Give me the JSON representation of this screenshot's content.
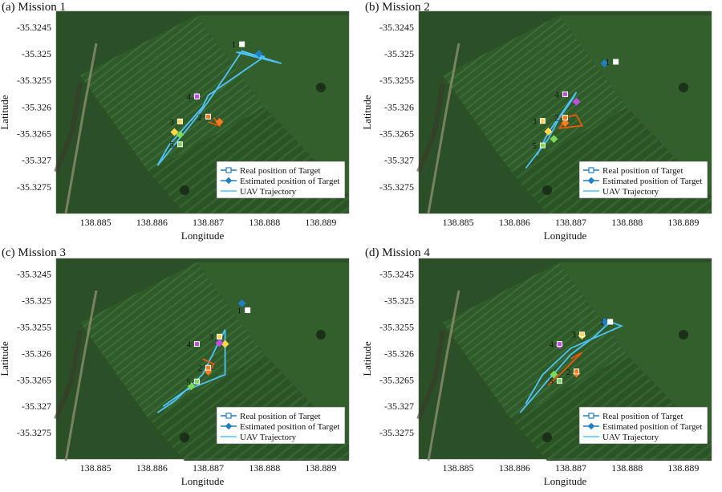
{
  "panels": [
    {
      "label": "(a) Mission 1"
    },
    {
      "label": "(b) Mission 2"
    },
    {
      "label": "(c) Mission 3"
    },
    {
      "label": "(d) Mission 4"
    }
  ],
  "colors": {
    "real": "#1f7fc4",
    "estimated": "#1f7fc4",
    "trajectory": "#4fc3f7",
    "target_colors": [
      "#ffffff",
      "#ff7a1a",
      "#ffd84d",
      "#c04fe0",
      "#7ed957"
    ],
    "path_orange": "#e8590c"
  },
  "chart_data": [
    {
      "type": "scatter",
      "title": "(a) Mission 1",
      "xlabel": "Longitude",
      "ylabel": "Latitude",
      "xlim": [
        138.8843,
        138.8895
      ],
      "ylim": [
        -35.328,
        -35.3242
      ],
      "xticks": [
        "138.885",
        "138.886",
        "138.887",
        "138.888",
        "138.889"
      ],
      "yticks": [
        "-35.3245",
        "-35.325",
        "-35.3255",
        "-35.326",
        "-35.3265",
        "-35.327",
        "-35.3275"
      ],
      "legend": [
        "Real position of Target",
        "Estimated position of Target",
        "UAV Trajectory"
      ],
      "legend_position": "bottom-right",
      "targets": [
        {
          "label": "1",
          "real": [
            138.8876,
            -35.32482
          ],
          "est": [
            138.8879,
            -35.325
          ]
        },
        {
          "label": "2",
          "real": [
            138.887,
            -35.32618
          ],
          "est": [
            138.8872,
            -35.32628
          ]
        },
        {
          "label": "3",
          "real": [
            138.8865,
            -35.32627
          ],
          "est": [
            138.8864,
            -35.32647
          ]
        },
        {
          "label": "4",
          "real": [
            138.8868,
            -35.3258
          ],
          "est": [
            138.8868,
            -35.3258
          ]
        },
        {
          "label": "5",
          "real": [
            138.8865,
            -35.3267
          ],
          "est": [
            138.8865,
            -35.32652
          ]
        }
      ],
      "trajectory": [
        [
          138.888,
          -35.32505
        ],
        [
          138.887,
          -35.32578
        ],
        [
          138.8869,
          -35.326
        ],
        [
          138.8863,
          -35.32672
        ],
        [
          138.8861,
          -35.3271
        ],
        [
          138.8867,
          -35.32632
        ],
        [
          138.887,
          -35.3259
        ],
        [
          138.8876,
          -35.32495
        ],
        [
          138.8883,
          -35.32518
        ],
        [
          138.8875,
          -35.32497
        ],
        [
          138.888,
          -35.32505
        ]
      ],
      "orange_path": [
        [
          138.8871,
          -35.3262
        ],
        [
          138.8872,
          -35.32635
        ],
        [
          138.887,
          -35.32628
        ]
      ]
    },
    {
      "type": "scatter",
      "title": "(b) Mission 2",
      "xlabel": "Longitude",
      "ylabel": "Latitude",
      "xlim": [
        138.8843,
        138.8895
      ],
      "ylim": [
        -35.328,
        -35.3242
      ],
      "xticks": [
        "138.885",
        "138.886",
        "138.887",
        "138.888",
        "138.889"
      ],
      "yticks": [
        "-35.3245",
        "-35.325",
        "-35.3255",
        "-35.326",
        "-35.3265",
        "-35.327",
        "-35.3275"
      ],
      "legend": [
        "Real position of Target",
        "Estimated position of Target",
        "UAV Trajectory"
      ],
      "legend_position": "bottom-right",
      "targets": [
        {
          "label": "1",
          "real": [
            138.8878,
            -35.32515
          ],
          "est": [
            138.8876,
            -35.32518
          ]
        },
        {
          "label": "2",
          "real": [
            138.8869,
            -35.3262
          ],
          "est": [
            138.8869,
            -35.3263
          ]
        },
        {
          "label": "3",
          "real": [
            138.8865,
            -35.32626
          ],
          "est": [
            138.8866,
            -35.32646
          ]
        },
        {
          "label": "4",
          "real": [
            138.8869,
            -35.32576
          ],
          "est": [
            138.8871,
            -35.3259
          ]
        },
        {
          "label": "5",
          "real": [
            138.8865,
            -35.32672
          ],
          "est": [
            138.8867,
            -35.3266
          ]
        }
      ],
      "trajectory": [
        [
          138.8862,
          -35.32715
        ],
        [
          138.8866,
          -35.3266
        ],
        [
          138.8868,
          -35.3262
        ],
        [
          138.887,
          -35.3259
        ],
        [
          138.8871,
          -35.32572
        ],
        [
          138.8866,
          -35.32648
        ],
        [
          138.8864,
          -35.3269
        ]
      ],
      "orange_path": [
        [
          138.8868,
          -35.3262
        ],
        [
          138.8871,
          -35.32615
        ],
        [
          138.8872,
          -35.32635
        ],
        [
          138.8868,
          -35.3264
        ],
        [
          138.8869,
          -35.32625
        ]
      ]
    },
    {
      "type": "scatter",
      "title": "(c) Mission 3",
      "xlabel": "Longitude",
      "ylabel": "Latitude",
      "xlim": [
        138.8843,
        138.8895
      ],
      "ylim": [
        -35.328,
        -35.3242
      ],
      "xticks": [
        "138.885",
        "138.886",
        "138.887",
        "138.888",
        "138.889"
      ],
      "yticks": [
        "-35.3245",
        "-35.325",
        "-35.3255",
        "-35.326",
        "-35.3265",
        "-35.327",
        "-35.3275"
      ],
      "legend": [
        "Real position of Target",
        "Estimated position of Target",
        "UAV Trajectory"
      ],
      "legend_position": "bottom-right",
      "targets": [
        {
          "label": "1",
          "real": [
            138.8877,
            -35.32518
          ],
          "est": [
            138.8876,
            -35.32505
          ]
        },
        {
          "label": "2",
          "real": [
            138.887,
            -35.32627
          ],
          "est": [
            138.887,
            -35.32634
          ]
        },
        {
          "label": "3",
          "real": [
            138.8872,
            -35.32568
          ],
          "est": [
            138.8873,
            -35.32582
          ]
        },
        {
          "label": "4",
          "real": [
            138.8868,
            -35.32582
          ],
          "est": [
            138.8872,
            -35.3258
          ]
        },
        {
          "label": "5",
          "real": [
            138.8868,
            -35.32653
          ],
          "est": [
            138.8867,
            -35.32662
          ]
        }
      ],
      "trajectory": [
        [
          138.8861,
          -35.32712
        ],
        [
          138.8864,
          -35.3269
        ],
        [
          138.8869,
          -35.3264
        ],
        [
          138.8873,
          -35.32555
        ],
        [
          138.8873,
          -35.3264
        ],
        [
          138.8866,
          -35.3267
        ],
        [
          138.8862,
          -35.327
        ]
      ],
      "orange_path": [
        [
          138.8869,
          -35.3261
        ],
        [
          138.8871,
          -35.3262
        ],
        [
          138.887,
          -35.3264
        ]
      ]
    },
    {
      "type": "scatter",
      "title": "(d) Mission 4",
      "xlabel": "Longitude",
      "ylabel": "Latitude",
      "xlim": [
        138.8843,
        138.8895
      ],
      "ylim": [
        -35.328,
        -35.3242
      ],
      "xticks": [
        "138.885",
        "138.886",
        "138.887",
        "138.888",
        "138.889"
      ],
      "yticks": [
        "-35.3245",
        "-35.325",
        "-35.3255",
        "-35.326",
        "-35.3265",
        "-35.327",
        "-35.3275"
      ],
      "legend": [
        "Real position of Target",
        "Estimated position of Target",
        "UAV Trajectory"
      ],
      "legend_position": "bottom-right",
      "targets": [
        {
          "label": "1",
          "real": [
            138.8877,
            -35.3254
          ],
          "est": [
            138.8876,
            -35.3254
          ]
        },
        {
          "label": "2",
          "real": [
            138.8871,
            -35.32634
          ],
          "est": [
            138.8871,
            -35.32638
          ]
        },
        {
          "label": "3",
          "real": [
            138.8872,
            -35.32564
          ],
          "est": [
            138.8872,
            -35.32566
          ]
        },
        {
          "label": "4",
          "real": [
            138.8868,
            -35.32582
          ],
          "est": [
            138.8868,
            -35.32584
          ]
        },
        {
          "label": "5",
          "real": [
            138.8868,
            -35.32652
          ],
          "est": [
            138.8867,
            -35.3264
          ]
        }
      ],
      "trajectory": [
        [
          138.8861,
          -35.32712
        ],
        [
          138.8866,
          -35.3265
        ],
        [
          138.887,
          -35.32602
        ],
        [
          138.8874,
          -35.3257
        ],
        [
          138.8877,
          -35.3254
        ],
        [
          138.8879,
          -35.32548
        ],
        [
          138.887,
          -35.3259
        ],
        [
          138.8865,
          -35.3264
        ],
        [
          138.8862,
          -35.32695
        ]
      ],
      "orange_path": [
        [
          138.8866,
          -35.3266
        ],
        [
          138.8869,
          -35.3263
        ],
        [
          138.8872,
          -35.32598
        ],
        [
          138.887,
          -35.3261
        ]
      ]
    }
  ]
}
